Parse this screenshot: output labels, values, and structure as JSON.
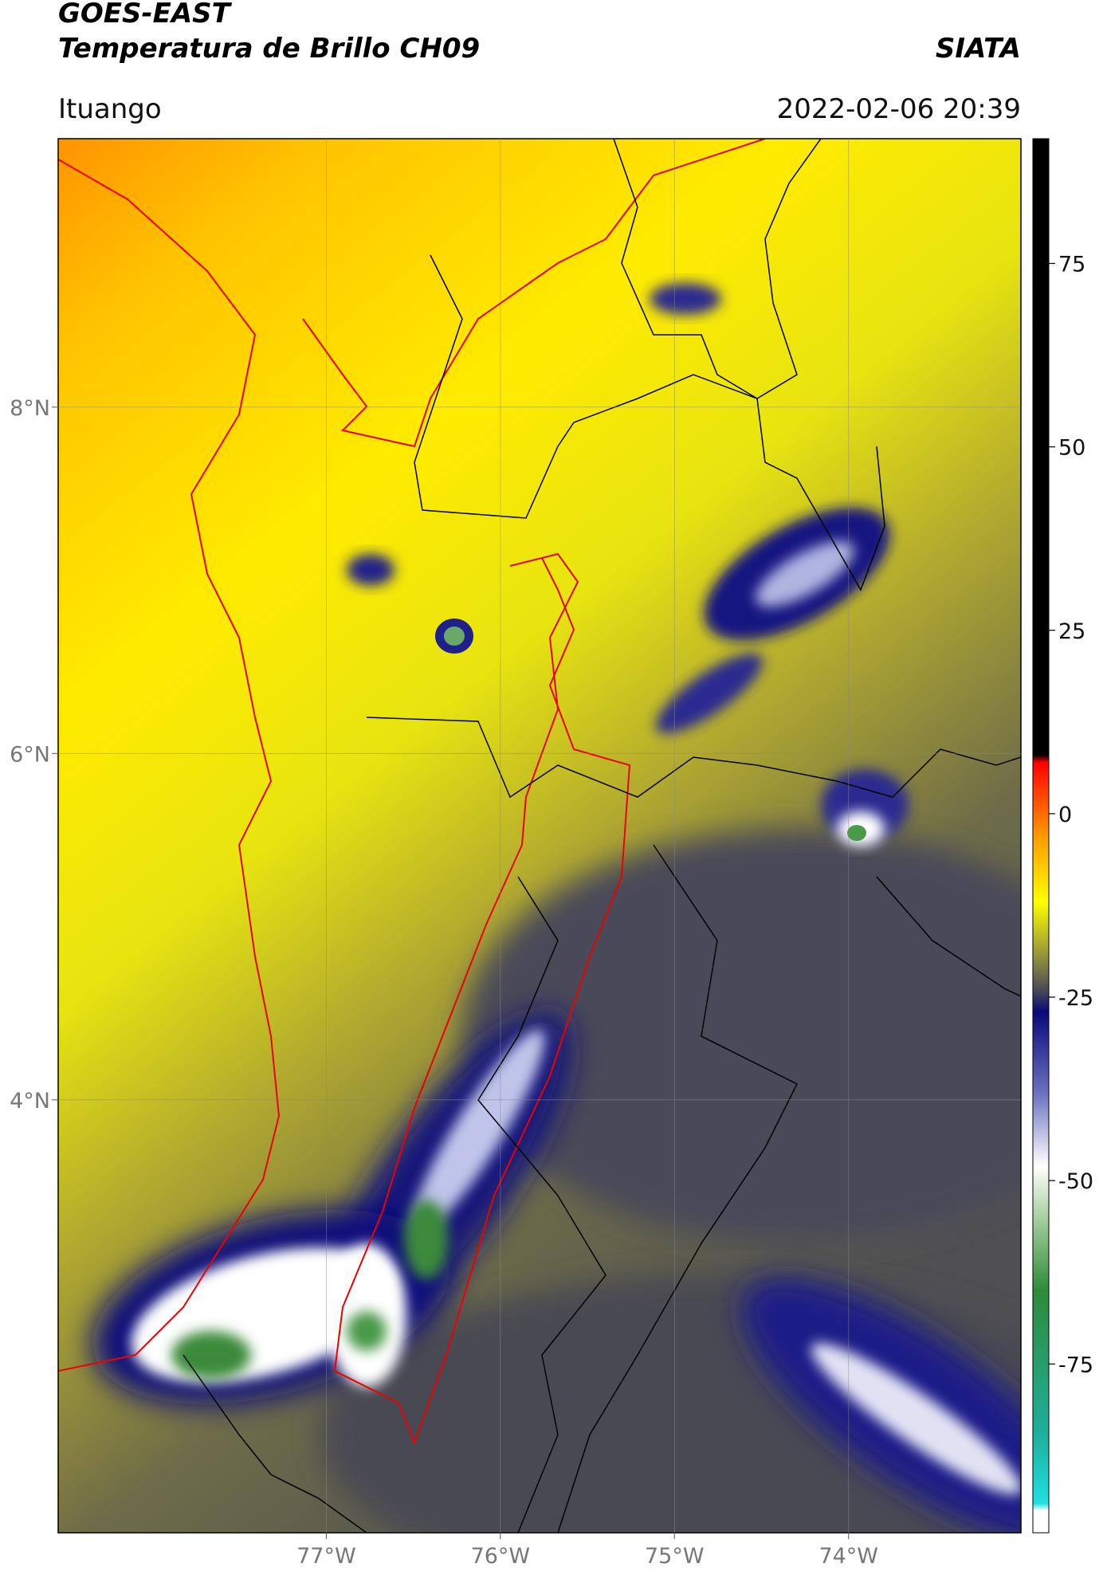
{
  "header": {
    "satellite": "GOES-EAST",
    "product": "Temperatura de Brillo CH09",
    "institution": "SIATA",
    "location": "Ituango",
    "datetime": "2022-02-06 20:39"
  },
  "map": {
    "xlim": [
      -78.54,
      -73.01
    ],
    "ylim": [
      1.5,
      9.55
    ],
    "xticks": [
      {
        "value": -77,
        "label": "77°W"
      },
      {
        "value": -76,
        "label": "76°W"
      },
      {
        "value": -75,
        "label": "75°W"
      },
      {
        "value": -74,
        "label": "74°W"
      }
    ],
    "yticks": [
      {
        "value": 8,
        "label": "8°N"
      },
      {
        "value": 6,
        "label": "6°N"
      },
      {
        "value": 4,
        "label": "4°N"
      }
    ],
    "grid": true
  },
  "colorbar": {
    "ylim": [
      -98,
      92
    ],
    "yticks": [
      75,
      50,
      25,
      0,
      -25,
      -50,
      -75
    ],
    "stops": [
      {
        "value": -98,
        "color": "#ffffff"
      },
      {
        "value": -95,
        "color": "#ffffff"
      },
      {
        "value": -94,
        "color": "#1fe0e0"
      },
      {
        "value": -85,
        "color": "#1fb0a0"
      },
      {
        "value": -65,
        "color": "#2e8b3a"
      },
      {
        "value": -55,
        "color": "#a8d0a0"
      },
      {
        "value": -48,
        "color": "#ffffff"
      },
      {
        "value": -38,
        "color": "#6a70c0"
      },
      {
        "value": -27,
        "color": "#0a0a78"
      },
      {
        "value": -24,
        "color": "#4a4a55"
      },
      {
        "value": -20,
        "color": "#8c8a40"
      },
      {
        "value": -12,
        "color": "#ffff00"
      },
      {
        "value": -3,
        "color": "#ff9a00"
      },
      {
        "value": 7,
        "color": "#ff0000"
      },
      {
        "value": 8,
        "color": "#000000"
      },
      {
        "value": 92,
        "color": "#000000"
      }
    ]
  }
}
